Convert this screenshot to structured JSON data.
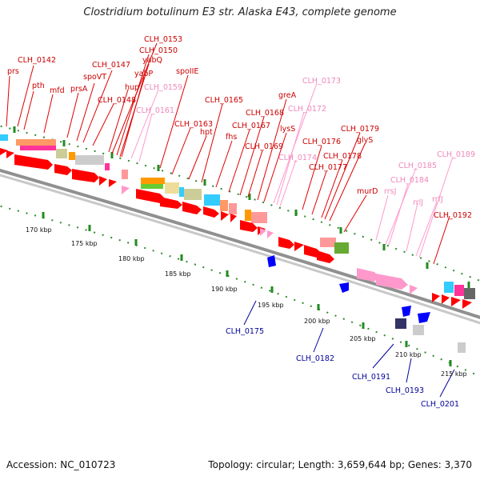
{
  "title": "Clostridium botulinum E3 str. Alaska E43, complete genome",
  "footer": {
    "accession": "Accession: NC_010723",
    "summary": "Topology: circular; Length: 3,659,644 bp; Genes: 3,370"
  },
  "ticks": [
    "170 kbp",
    "175 kbp",
    "180 kbp",
    "185 kbp",
    "190 kbp",
    "195 kbp",
    "200 kbp",
    "205 kbp",
    "210 kbp",
    "215 kbp"
  ],
  "labels_red": [
    "prs",
    "CLH_0142",
    "pth",
    "mfd",
    "prsA",
    "spoVT",
    "CLH_0147",
    "CLH_0148",
    "hup",
    "CLH_0153",
    "CLH_0150",
    "yabQ",
    "yabP",
    "spoIIE",
    "CLH_0163",
    "hpt",
    "CLH_0165",
    "fhs",
    "CLH_0167",
    "CLH_0168",
    "greA",
    "lysS",
    "CLH_0169",
    "CLH_0176",
    "CLH_0177",
    "CLH_0178",
    "glyS",
    "CLH_0179",
    "murD",
    "CLH_0192"
  ],
  "labels_pink": [
    "CLH_0159",
    "CLH_0161",
    "CLH_0173",
    "CLH_0172",
    "CLH_0174",
    "rrsJ",
    "CLH_0185",
    "CLH_0184",
    "rrlJ",
    "rrfJ",
    "CLH_0189"
  ],
  "labels_blue": [
    "CLH_0175",
    "CLH_0182",
    "CLH_0191",
    "CLH_0193",
    "CLH_0201"
  ],
  "colors": {
    "cds": "#ff0000",
    "rna": "#ff99cc",
    "minus_strand": "#0000ff",
    "backbone": "#808080",
    "tick_green": "#228b22"
  }
}
